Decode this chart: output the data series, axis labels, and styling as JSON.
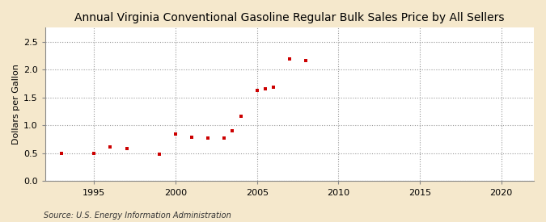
{
  "title": "Annual Virginia Conventional Gasoline Regular Bulk Sales Price by All Sellers",
  "ylabel": "Dollars per Gallon",
  "source": "Source: U.S. Energy Information Administration",
  "fig_background_color": "#f5e8cc",
  "plot_background_color": "#ffffff",
  "marker_color": "#cc0000",
  "xlim": [
    1992,
    2022
  ],
  "ylim": [
    0.0,
    2.75
  ],
  "xticks": [
    1995,
    2000,
    2005,
    2010,
    2015,
    2020
  ],
  "yticks": [
    0.0,
    0.5,
    1.0,
    1.5,
    2.0,
    2.5
  ],
  "data_x": [
    1993,
    1995,
    1996,
    1997,
    1999,
    2000,
    2001,
    2002,
    2003,
    2003.5,
    2004,
    2005,
    2005.5,
    2006,
    2007,
    2008
  ],
  "data_y": [
    0.5,
    0.5,
    0.62,
    0.59,
    0.48,
    0.84,
    0.79,
    0.78,
    0.78,
    0.91,
    1.16,
    1.63,
    1.65,
    1.68,
    2.19,
    2.16
  ],
  "title_fontsize": 10,
  "label_fontsize": 8,
  "tick_fontsize": 8,
  "source_fontsize": 7
}
